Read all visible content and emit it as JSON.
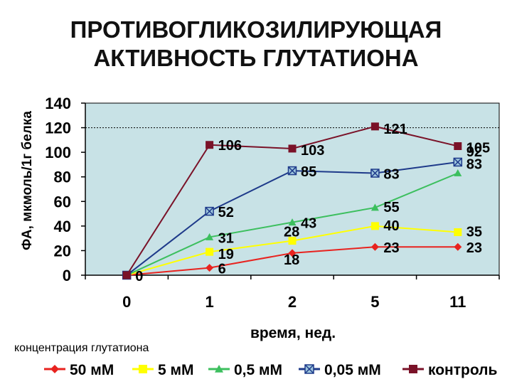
{
  "title_lines": [
    "ПРОТИВОГЛИКОЗИЛИРУЮЩАЯ",
    "АКТИВНОСТЬ ГЛУТАТИОНА"
  ],
  "legend_title": "концентрация глутатиона",
  "colors": {
    "plot_bg": "#c8e2e6",
    "axis": "#000000",
    "ref_line": "#000000"
  },
  "chart_data": {
    "type": "line",
    "title": "ПРОТИВОГЛИКОЗИЛИРУЮЩАЯ АКТИВНОСТЬ ГЛУТАТИОНА",
    "xlabel": "время, нед.",
    "ylabel": "ФА, мкмоль/1г белка",
    "categories": [
      "0",
      "1",
      "2",
      "5",
      "11"
    ],
    "ylim": [
      0,
      140
    ],
    "yticks": [
      0,
      20,
      40,
      60,
      80,
      100,
      120,
      140
    ],
    "reference_line": 120,
    "grid": false,
    "legend_position": "bottom",
    "series": [
      {
        "name": "50 мМ",
        "values": [
          0,
          6,
          18,
          23,
          23
        ],
        "labels": [
          "",
          "6",
          "18",
          "23",
          "23"
        ],
        "color": "#e8231f",
        "marker": "diamond"
      },
      {
        "name": "5 мМ",
        "values": [
          0,
          19,
          28,
          40,
          35
        ],
        "labels": [
          "",
          "19",
          "28",
          "40",
          "35"
        ],
        "color": "#ffff00",
        "marker": "square"
      },
      {
        "name": "0,5 мМ",
        "values": [
          0,
          31,
          43,
          55,
          83
        ],
        "labels": [
          "",
          "31",
          "43",
          "55",
          "83"
        ],
        "color": "#3cbf5e",
        "marker": "triangle"
      },
      {
        "name": "0,05 мМ",
        "values": [
          0,
          52,
          85,
          83,
          92
        ],
        "labels": [
          "",
          "52",
          "85",
          "83",
          "92"
        ],
        "color": "#1e3a8a",
        "marker": "xsquare"
      },
      {
        "name": "контроль",
        "values": [
          0,
          106,
          103,
          121,
          105
        ],
        "labels": [
          "0",
          "106",
          "103",
          "121",
          "105"
        ],
        "color": "#7a1228",
        "marker": "square"
      }
    ]
  }
}
